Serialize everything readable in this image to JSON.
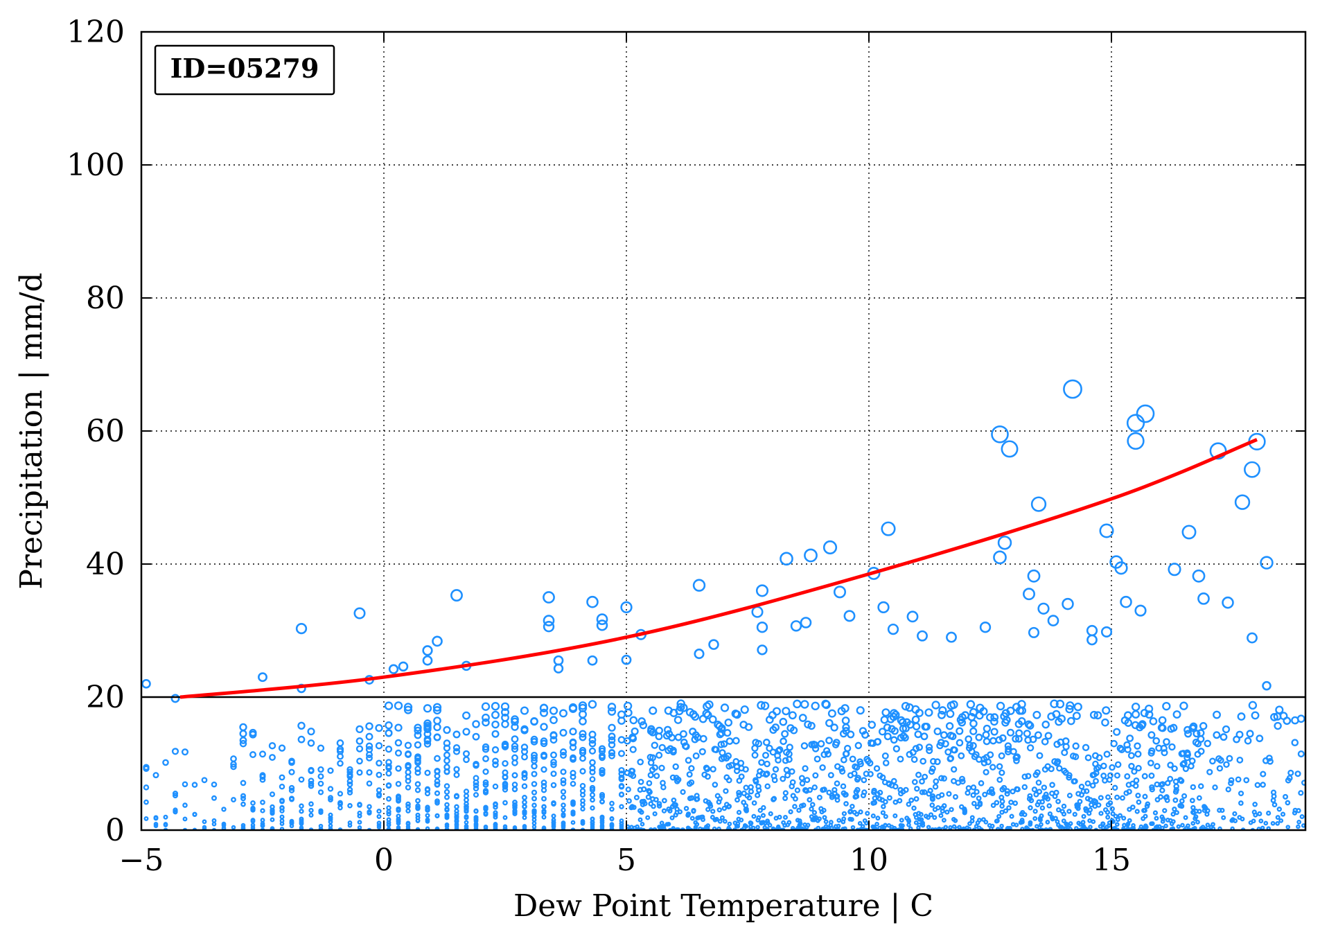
{
  "chart_data": {
    "type": "scatter",
    "title": "",
    "xlabel": "Dew Point Temperature | C",
    "ylabel": "Precipitation | mm/d",
    "xlim": [
      -5,
      19
    ],
    "ylim": [
      0,
      120
    ],
    "x_ticks": [
      -5,
      0,
      5,
      10,
      15
    ],
    "x_tick_labels": [
      "−5",
      "0",
      "5",
      "10",
      "15"
    ],
    "y_ticks": [
      0,
      20,
      40,
      60,
      80,
      100,
      120
    ],
    "y_tick_labels": [
      "0",
      "20",
      "40",
      "60",
      "80",
      "100",
      "120"
    ],
    "grid": true,
    "legend": "none",
    "annotation": "ID=05279",
    "reference_line_y": 20,
    "colors": {
      "points": "#1e90ff",
      "fit_line": "#ff0000",
      "reference_line": "#000000"
    },
    "series": [
      {
        "type": "scatter",
        "marker": "open-circle",
        "note": "Dense cloud of observations from approx. x=-5 to 19 C, y=0 to 20 mm/d; marker size grows with precipitation. Outliers listed below.",
        "points": [
          [
            -4.9,
            22
          ],
          [
            -4.3,
            19.8
          ],
          [
            -2.5,
            23
          ],
          [
            -1.7,
            30.3
          ],
          [
            -1.7,
            21.3
          ],
          [
            -0.5,
            32.6
          ],
          [
            -0.3,
            22.6
          ],
          [
            0.2,
            24.2
          ],
          [
            0.4,
            24.6
          ],
          [
            0.9,
            25.5
          ],
          [
            0.9,
            27
          ],
          [
            1.1,
            28.4
          ],
          [
            1.5,
            35.3
          ],
          [
            1.7,
            24.7
          ],
          [
            3.4,
            35
          ],
          [
            3.4,
            31.5
          ],
          [
            3.4,
            30.6
          ],
          [
            3.6,
            25.5
          ],
          [
            3.6,
            24.3
          ],
          [
            4.3,
            34.3
          ],
          [
            4.5,
            31.7
          ],
          [
            4.5,
            30.8
          ],
          [
            4.3,
            25.5
          ],
          [
            5,
            33.5
          ],
          [
            5.3,
            29.4
          ],
          [
            5,
            25.6
          ],
          [
            6.5,
            36.8
          ],
          [
            6.5,
            26.5
          ],
          [
            6.8,
            27.9
          ],
          [
            7.8,
            36
          ],
          [
            7.7,
            32.8
          ],
          [
            7.8,
            30.5
          ],
          [
            7.8,
            27.1
          ],
          [
            8.3,
            40.8
          ],
          [
            8.8,
            41.3
          ],
          [
            9.2,
            42.5
          ],
          [
            8.5,
            30.7
          ],
          [
            8.7,
            31.2
          ],
          [
            9.4,
            35.8
          ],
          [
            9.6,
            32.2
          ],
          [
            10.1,
            38.6
          ],
          [
            10.3,
            33.5
          ],
          [
            10.4,
            45.3
          ],
          [
            10.5,
            30.2
          ],
          [
            10.9,
            32.1
          ],
          [
            11.1,
            29.2
          ],
          [
            11.7,
            29
          ],
          [
            12.4,
            30.5
          ],
          [
            12.7,
            59.5
          ],
          [
            12.7,
            41
          ],
          [
            12.8,
            43.2
          ],
          [
            12.9,
            57.3
          ],
          [
            13.3,
            35.5
          ],
          [
            13.4,
            38.2
          ],
          [
            13.5,
            49
          ],
          [
            13.4,
            29.7
          ],
          [
            13.6,
            33.3
          ],
          [
            13.8,
            31.5
          ],
          [
            14.2,
            66.3
          ],
          [
            14.1,
            34
          ],
          [
            14.6,
            28.6
          ],
          [
            14.6,
            30
          ],
          [
            14.9,
            45
          ],
          [
            14.9,
            29.8
          ],
          [
            15.1,
            40.3
          ],
          [
            15.2,
            39.4
          ],
          [
            15.3,
            34.3
          ],
          [
            15.5,
            61.2
          ],
          [
            15.5,
            58.5
          ],
          [
            15.7,
            62.6
          ],
          [
            15.6,
            33
          ],
          [
            16.3,
            39.2
          ],
          [
            16.6,
            44.8
          ],
          [
            16.8,
            38.2
          ],
          [
            16.9,
            34.8
          ],
          [
            17.2,
            57
          ],
          [
            17.4,
            34.2
          ],
          [
            17.7,
            49.3
          ],
          [
            17.9,
            54.2
          ],
          [
            18,
            58.4
          ],
          [
            17.9,
            28.9
          ],
          [
            18.2,
            40.2
          ],
          [
            18.2,
            21.7
          ]
        ]
      },
      {
        "type": "line",
        "role": "fit",
        "points": [
          [
            -4.2,
            20
          ],
          [
            0,
            23
          ],
          [
            5,
            29
          ],
          [
            10,
            38.5
          ],
          [
            15,
            49.8
          ],
          [
            18,
            58.7
          ]
        ]
      }
    ]
  }
}
